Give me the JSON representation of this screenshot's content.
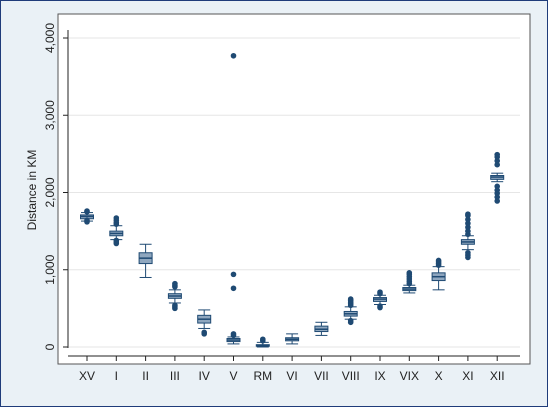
{
  "chart_data": {
    "type": "box",
    "ylabel": "Distance in KM",
    "xlabel": "",
    "ylim": [
      0,
      4000
    ],
    "yticks": [
      0,
      1000,
      2000,
      3000,
      4000
    ],
    "ytick_labels": [
      "0",
      "1,000",
      "2,000",
      "3,000",
      "4,000"
    ],
    "grid": "horizontal",
    "categories": [
      "XV",
      "I",
      "II",
      "III",
      "IV",
      "V",
      "RM",
      "VI",
      "VII",
      "VIII",
      "IX",
      "VIX",
      "X",
      "XI",
      "XII"
    ],
    "boxes": [
      {
        "q1": 1660,
        "median": 1690,
        "q3": 1710,
        "whisker_low": 1630,
        "whisker_high": 1740,
        "outliers": [
          1620,
          1640,
          1750,
          1760
        ]
      },
      {
        "q1": 1440,
        "median": 1470,
        "q3": 1500,
        "whisker_low": 1390,
        "whisker_high": 1570,
        "outliers": [
          1340,
          1360,
          1380,
          1590,
          1610,
          1640,
          1670
        ]
      },
      {
        "q1": 1080,
        "median": 1150,
        "q3": 1220,
        "whisker_low": 900,
        "whisker_high": 1330,
        "outliers": []
      },
      {
        "q1": 630,
        "median": 660,
        "q3": 690,
        "whisker_low": 570,
        "whisker_high": 740,
        "outliers": [
          500,
          520,
          540,
          780,
          800,
          820
        ]
      },
      {
        "q1": 310,
        "median": 360,
        "q3": 410,
        "whisker_low": 240,
        "whisker_high": 480,
        "outliers": [
          170,
          190
        ]
      },
      {
        "q1": 70,
        "median": 90,
        "q3": 110,
        "whisker_low": 40,
        "whisker_high": 130,
        "outliers": [
          150,
          170,
          760,
          940,
          3770
        ]
      },
      {
        "q1": 10,
        "median": 20,
        "q3": 30,
        "whisker_low": 0,
        "whisker_high": 60,
        "outliers": [
          80,
          100
        ]
      },
      {
        "q1": 80,
        "median": 100,
        "q3": 120,
        "whisker_low": 40,
        "whisker_high": 170,
        "outliers": []
      },
      {
        "q1": 200,
        "median": 230,
        "q3": 270,
        "whisker_low": 150,
        "whisker_high": 320,
        "outliers": []
      },
      {
        "q1": 400,
        "median": 430,
        "q3": 460,
        "whisker_low": 360,
        "whisker_high": 520,
        "outliers": [
          320,
          340,
          540,
          560,
          580,
          600,
          620
        ]
      },
      {
        "q1": 590,
        "median": 620,
        "q3": 640,
        "whisker_low": 550,
        "whisker_high": 670,
        "outliers": [
          510,
          530,
          690,
          710
        ]
      },
      {
        "q1": 730,
        "median": 750,
        "q3": 770,
        "whisker_low": 700,
        "whisker_high": 800,
        "outliers": [
          820,
          850,
          880,
          910,
          940,
          960
        ]
      },
      {
        "q1": 860,
        "median": 910,
        "q3": 960,
        "whisker_low": 740,
        "whisker_high": 1040,
        "outliers": [
          1060,
          1080,
          1100,
          1120
        ]
      },
      {
        "q1": 1330,
        "median": 1360,
        "q3": 1390,
        "whisker_low": 1260,
        "whisker_high": 1440,
        "outliers": [
          1160,
          1190,
          1220,
          1460,
          1500,
          1550,
          1600,
          1650,
          1700,
          1720
        ]
      },
      {
        "q1": 2170,
        "median": 2200,
        "q3": 2220,
        "whisker_low": 2140,
        "whisker_high": 2250,
        "outliers": [
          1890,
          1940,
          1990,
          2030,
          2080,
          2360,
          2410,
          2460,
          2490
        ]
      }
    ],
    "colors": {
      "box_fill": "#8fa7bf",
      "box_stroke": "#1f4a73",
      "median": "#1f4a73",
      "outlier": "#1f4a73",
      "grid": "#e6e6e6",
      "plot_bg": "#ffffff",
      "outer_bg": "#eaf1f6",
      "frame": "#1f3c7a"
    }
  }
}
